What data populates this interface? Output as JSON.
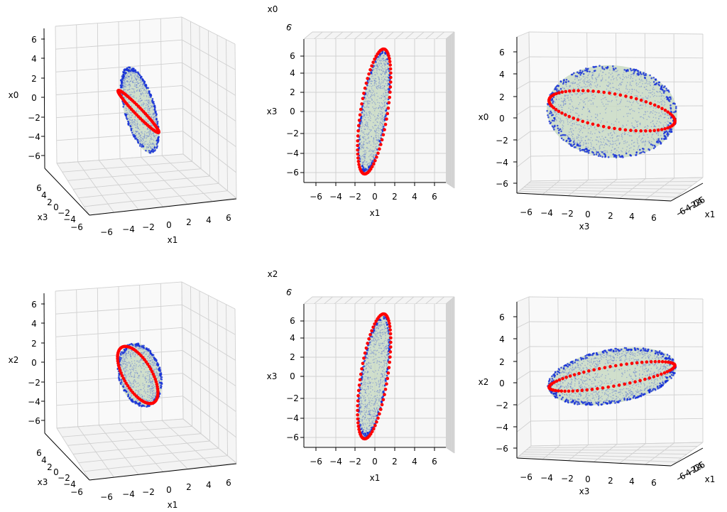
{
  "chart_data": [
    {
      "type": "scatter3d",
      "panel": "top-left",
      "xlabel": "x1",
      "ylabel": "x3",
      "zlabel": "x0",
      "xlim": [
        -7,
        7
      ],
      "ylim": [
        -7,
        7
      ],
      "zlim": [
        -7,
        7
      ],
      "xticks": [
        "−6",
        "−4",
        "−2",
        "0",
        "2",
        "4",
        "6"
      ],
      "yticks": [
        "6",
        "4",
        "2",
        "0",
        "−2",
        "−4",
        "−6"
      ],
      "zticks": [
        "6",
        "4",
        "2",
        "0",
        "−2",
        "−4",
        "−6"
      ],
      "series": [
        {
          "marker": "surface points",
          "color": "#1f2fd0"
        },
        {
          "marker": "ring points",
          "color": "#ff0000"
        }
      ],
      "grid": true
    },
    {
      "type": "scatter3d",
      "panel": "top-center",
      "xlabel": "x1",
      "ylabel": "x3",
      "zlabel": "x0",
      "overlap_label": "6",
      "xticks": [
        "−6",
        "−4",
        "−2",
        "0",
        "2",
        "4",
        "6"
      ],
      "yticks": [
        "6",
        "4",
        "2",
        "0",
        "−2",
        "−4",
        "−6"
      ],
      "series": [
        {
          "marker": "surface points",
          "color": "#1f2fd0"
        },
        {
          "marker": "ring points",
          "color": "#ff0000"
        }
      ],
      "grid": true
    },
    {
      "type": "scatter3d",
      "panel": "top-right",
      "xlabel": "x3",
      "ylabel": "x1",
      "zlabel": "x0",
      "xticks": [
        "−6",
        "−4",
        "−2",
        "0",
        "2",
        "4",
        "6"
      ],
      "yticks_compressed": "−6−4−2 0 2 4 6",
      "zticks": [
        "6",
        "4",
        "2",
        "0",
        "−2",
        "−4",
        "−6"
      ],
      "series": [
        {
          "marker": "surface points",
          "color": "#1f2fd0"
        },
        {
          "marker": "ring points",
          "color": "#ff0000"
        }
      ],
      "grid": true
    },
    {
      "type": "scatter3d",
      "panel": "bottom-left",
      "xlabel": "x1",
      "ylabel": "x3",
      "zlabel": "x2",
      "xlim": [
        -7,
        7
      ],
      "ylim": [
        -7,
        7
      ],
      "zlim": [
        -7,
        7
      ],
      "xticks": [
        "−6",
        "−4",
        "−2",
        "0",
        "2",
        "4",
        "6"
      ],
      "yticks": [
        "6",
        "4",
        "2",
        "0",
        "−2",
        "−4",
        "−6"
      ],
      "zticks": [
        "6",
        "4",
        "2",
        "0",
        "−2",
        "−4",
        "−6"
      ],
      "series": [
        {
          "marker": "surface points",
          "color": "#1f2fd0"
        },
        {
          "marker": "ring points",
          "color": "#ff0000"
        }
      ],
      "grid": true
    },
    {
      "type": "scatter3d",
      "panel": "bottom-center",
      "xlabel": "x1",
      "ylabel": "x3",
      "zlabel": "x2",
      "overlap_label": "6",
      "xticks": [
        "−6",
        "−4",
        "−2",
        "0",
        "2",
        "4",
        "6"
      ],
      "yticks": [
        "6",
        "4",
        "2",
        "0",
        "−2",
        "−4",
        "−6"
      ],
      "series": [
        {
          "marker": "surface points",
          "color": "#1f2fd0"
        },
        {
          "marker": "ring points",
          "color": "#ff0000"
        }
      ],
      "grid": true
    },
    {
      "type": "scatter3d",
      "panel": "bottom-right",
      "xlabel": "x3",
      "ylabel": "x1",
      "zlabel": "x2",
      "xticks": [
        "−6",
        "−4",
        "−2",
        "0",
        "2",
        "4",
        "6"
      ],
      "yticks_compressed": "−6−4−2 0 2 4 6",
      "zticks": [
        "6",
        "4",
        "2",
        "0",
        "−2",
        "−4",
        "−6"
      ],
      "series": [
        {
          "marker": "surface points",
          "color": "#1f2fd0"
        },
        {
          "marker": "ring points",
          "color": "#ff0000"
        }
      ],
      "grid": true
    }
  ]
}
